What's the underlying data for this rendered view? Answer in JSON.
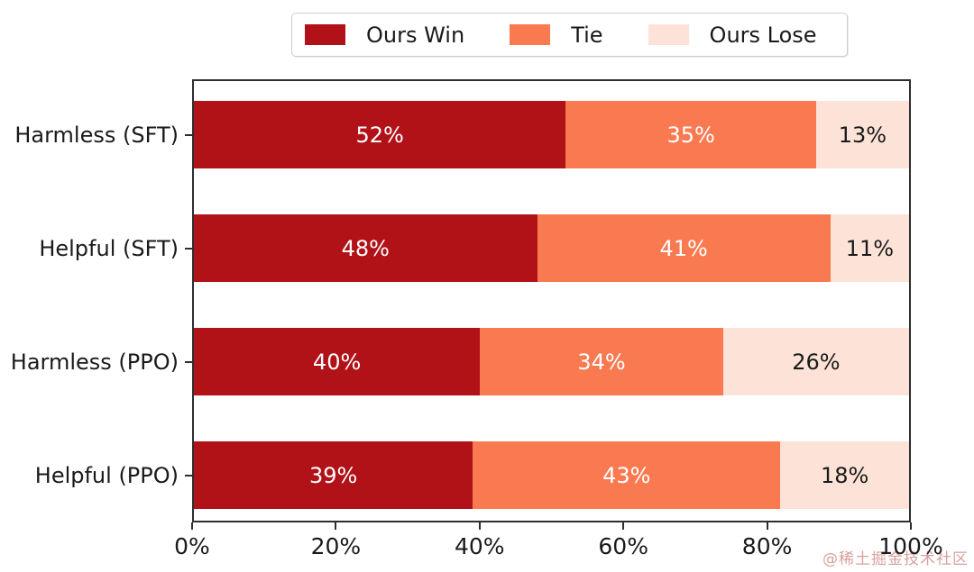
{
  "chart_data": {
    "type": "bar",
    "orientation": "horizontal",
    "stacked": true,
    "title": "",
    "xlabel": "",
    "ylabel": "",
    "categories": [
      "Harmless (SFT)",
      "Helpful (SFT)",
      "Harmless (PPO)",
      "Helpful (PPO)"
    ],
    "series": [
      {
        "name": "Ours Win",
        "color": "#b11218",
        "label_color": "#ffffff",
        "values": [
          52,
          48,
          40,
          39
        ]
      },
      {
        "name": "Tie",
        "color": "#f97a50",
        "label_color": "#ffffff",
        "values": [
          35,
          41,
          34,
          43
        ]
      },
      {
        "name": "Ours Lose",
        "color": "#fde3d7",
        "label_color": "#1a1a1a",
        "values": [
          13,
          11,
          26,
          18
        ]
      }
    ],
    "xlim": [
      0,
      100
    ],
    "x_tick_values": [
      0,
      20,
      40,
      60,
      80,
      100
    ],
    "x_tick_labels": [
      "0%",
      "20%",
      "40%",
      "60%",
      "80%",
      "100%"
    ],
    "value_suffix": "%",
    "legend_position": "top-center",
    "grid": false
  },
  "watermark": {
    "text": "@稀土掘金技术社区",
    "color": "#d0908c"
  }
}
